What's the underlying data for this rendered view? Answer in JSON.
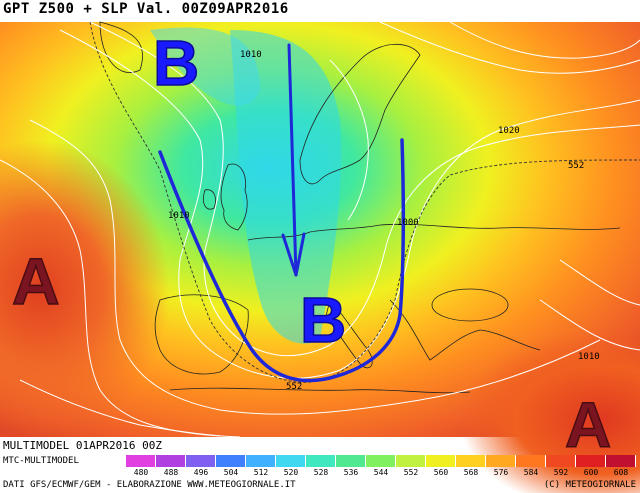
{
  "header": {
    "title": "GPT Z500 + SLP Val. 00Z09APR2016"
  },
  "map": {
    "pressure_systems": [
      {
        "label": "B",
        "type": "low",
        "color": "#1a1aff"
      },
      {
        "label": "B",
        "type": "low",
        "color": "#1a1aff"
      },
      {
        "label": "A",
        "type": "high",
        "color": "#7a1420"
      },
      {
        "label": "A",
        "type": "high",
        "color": "#7a1420"
      }
    ],
    "isobar_labels": [
      "1010",
      "1020",
      "1010",
      "1000",
      "1010"
    ],
    "isohypse_labels": [
      "552",
      "552"
    ],
    "annotation_color": "#1e28d8"
  },
  "footer": {
    "model": "MULTIMODEL 01APR2016 00Z",
    "source": "MTC-MULTIMODEL",
    "credits": "DATI GFS/ECMWF/GEM - ELABORAZIONE WWW.METEOGIORNALE.IT",
    "copyright": "(C) METEOGIORNALE"
  },
  "legend": {
    "values": [
      "480",
      "488",
      "496",
      "504",
      "512",
      "520",
      "528",
      "536",
      "544",
      "552",
      "560",
      "568",
      "576",
      "584",
      "592",
      "600",
      "608"
    ],
    "colors": [
      "#e040e0",
      "#b040e0",
      "#8060f0",
      "#4080ff",
      "#40b0ff",
      "#40d8f0",
      "#40e8c0",
      "#50e890",
      "#80f060",
      "#c0f040",
      "#f0f020",
      "#ffd020",
      "#ffa820",
      "#ff7820",
      "#f04820",
      "#e02020",
      "#c01030"
    ]
  }
}
